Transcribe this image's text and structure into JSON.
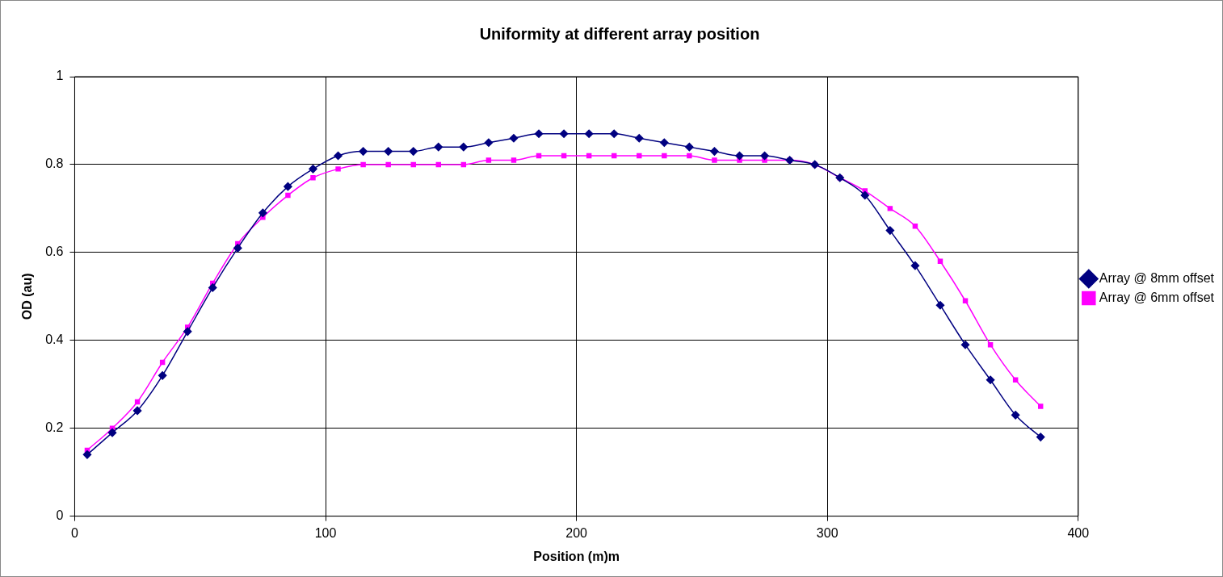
{
  "chart_data": {
    "type": "line",
    "title": "Uniformity at different array position",
    "xlabel": "Position (m)m",
    "ylabel": "OD (au)",
    "x": [
      5,
      15,
      25,
      35,
      45,
      55,
      65,
      75,
      85,
      95,
      105,
      115,
      125,
      135,
      145,
      155,
      165,
      175,
      185,
      195,
      205,
      215,
      225,
      235,
      245,
      255,
      265,
      275,
      285,
      295,
      305,
      315,
      325,
      335,
      345,
      355,
      365,
      375,
      385
    ],
    "series": [
      {
        "name": "Array @ 8mm offset",
        "color": "#000080",
        "marker": "diamond",
        "values": [
          0.14,
          0.19,
          0.24,
          0.32,
          0.42,
          0.52,
          0.61,
          0.69,
          0.75,
          0.79,
          0.82,
          0.83,
          0.83,
          0.83,
          0.84,
          0.84,
          0.85,
          0.86,
          0.87,
          0.87,
          0.87,
          0.87,
          0.86,
          0.85,
          0.84,
          0.83,
          0.82,
          0.82,
          0.81,
          0.8,
          0.77,
          0.73,
          0.65,
          0.57,
          0.48,
          0.39,
          0.31,
          0.23,
          0.18
        ]
      },
      {
        "name": "Array @ 6mm offset",
        "color": "#ff00ff",
        "marker": "square",
        "values": [
          0.15,
          0.2,
          0.26,
          0.35,
          0.43,
          0.53,
          0.62,
          0.68,
          0.73,
          0.77,
          0.79,
          0.8,
          0.8,
          0.8,
          0.8,
          0.8,
          0.81,
          0.81,
          0.82,
          0.82,
          0.82,
          0.82,
          0.82,
          0.82,
          0.82,
          0.81,
          0.81,
          0.81,
          0.81,
          0.8,
          0.77,
          0.74,
          0.7,
          0.66,
          0.58,
          0.49,
          0.39,
          0.31,
          0.25
        ]
      }
    ],
    "xlim": [
      0,
      400
    ],
    "xticks": [
      0,
      100,
      200,
      300,
      400
    ],
    "ylim": [
      0,
      1
    ],
    "yticks": [
      0,
      0.2,
      0.4,
      0.6,
      0.8,
      1
    ],
    "grid": true,
    "legend": "right",
    "line_style": "solid"
  }
}
